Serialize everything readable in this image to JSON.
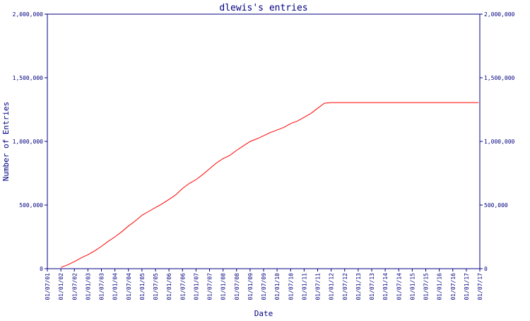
{
  "chart_data": {
    "type": "line",
    "title": "dlewis's entries",
    "xlabel": "Date",
    "ylabel": "Number of Entries",
    "ylim": [
      0,
      2000000
    ],
    "yticks": [
      0,
      500000,
      1000000,
      1500000,
      2000000
    ],
    "ytick_labels": [
      "0",
      "500,000",
      "1,000,000",
      "1,500,000",
      "2,000,000"
    ],
    "xlim": [
      "2001-07-01",
      "2017-07-01"
    ],
    "xtick_labels": [
      "01/07/01",
      "01/01/02",
      "01/07/02",
      "01/01/03",
      "01/07/03",
      "01/01/04",
      "01/07/04",
      "01/01/05",
      "01/07/05",
      "01/01/06",
      "01/07/06",
      "01/01/07",
      "01/07/07",
      "01/01/08",
      "01/07/08",
      "01/01/09",
      "01/07/09",
      "01/01/10",
      "01/07/10",
      "01/01/11",
      "01/07/11",
      "01/01/12",
      "01/07/12",
      "01/01/13",
      "01/07/13",
      "01/01/14",
      "01/07/14",
      "01/01/15",
      "01/07/15",
      "01/01/16",
      "01/07/16",
      "01/01/17",
      "01/07/17"
    ],
    "grid": false,
    "series": [
      {
        "color": "#ff0000",
        "x": [
          "2002-01-01",
          "2002-04-01",
          "2002-07-01",
          "2002-10-01",
          "2003-01-01",
          "2003-04-01",
          "2003-07-01",
          "2003-10-01",
          "2004-01-01",
          "2004-04-01",
          "2004-07-01",
          "2004-10-01",
          "2005-01-01",
          "2005-04-01",
          "2005-07-01",
          "2005-10-01",
          "2006-01-01",
          "2006-04-01",
          "2006-07-01",
          "2006-10-01",
          "2007-01-01",
          "2007-04-01",
          "2007-07-01",
          "2007-10-01",
          "2008-01-01",
          "2008-04-01",
          "2008-07-01",
          "2008-10-01",
          "2009-01-01",
          "2009-04-01",
          "2009-07-01",
          "2009-10-01",
          "2010-01-01",
          "2010-04-01",
          "2010-07-01",
          "2010-10-01",
          "2011-01-01",
          "2011-04-01",
          "2011-07-01",
          "2011-10-01",
          "2012-01-01",
          "2017-06-15"
        ],
        "y": [
          10000,
          30000,
          55000,
          85000,
          110000,
          140000,
          175000,
          215000,
          250000,
          290000,
          335000,
          375000,
          420000,
          450000,
          480000,
          510000,
          545000,
          580000,
          630000,
          670000,
          700000,
          740000,
          785000,
          830000,
          865000,
          890000,
          930000,
          965000,
          1000000,
          1020000,
          1045000,
          1070000,
          1090000,
          1110000,
          1140000,
          1160000,
          1190000,
          1220000,
          1260000,
          1300000,
          1305000,
          1305000
        ]
      }
    ],
    "colors": {
      "axis": "#000080",
      "text": "#000080",
      "line": "#ff0000"
    }
  }
}
